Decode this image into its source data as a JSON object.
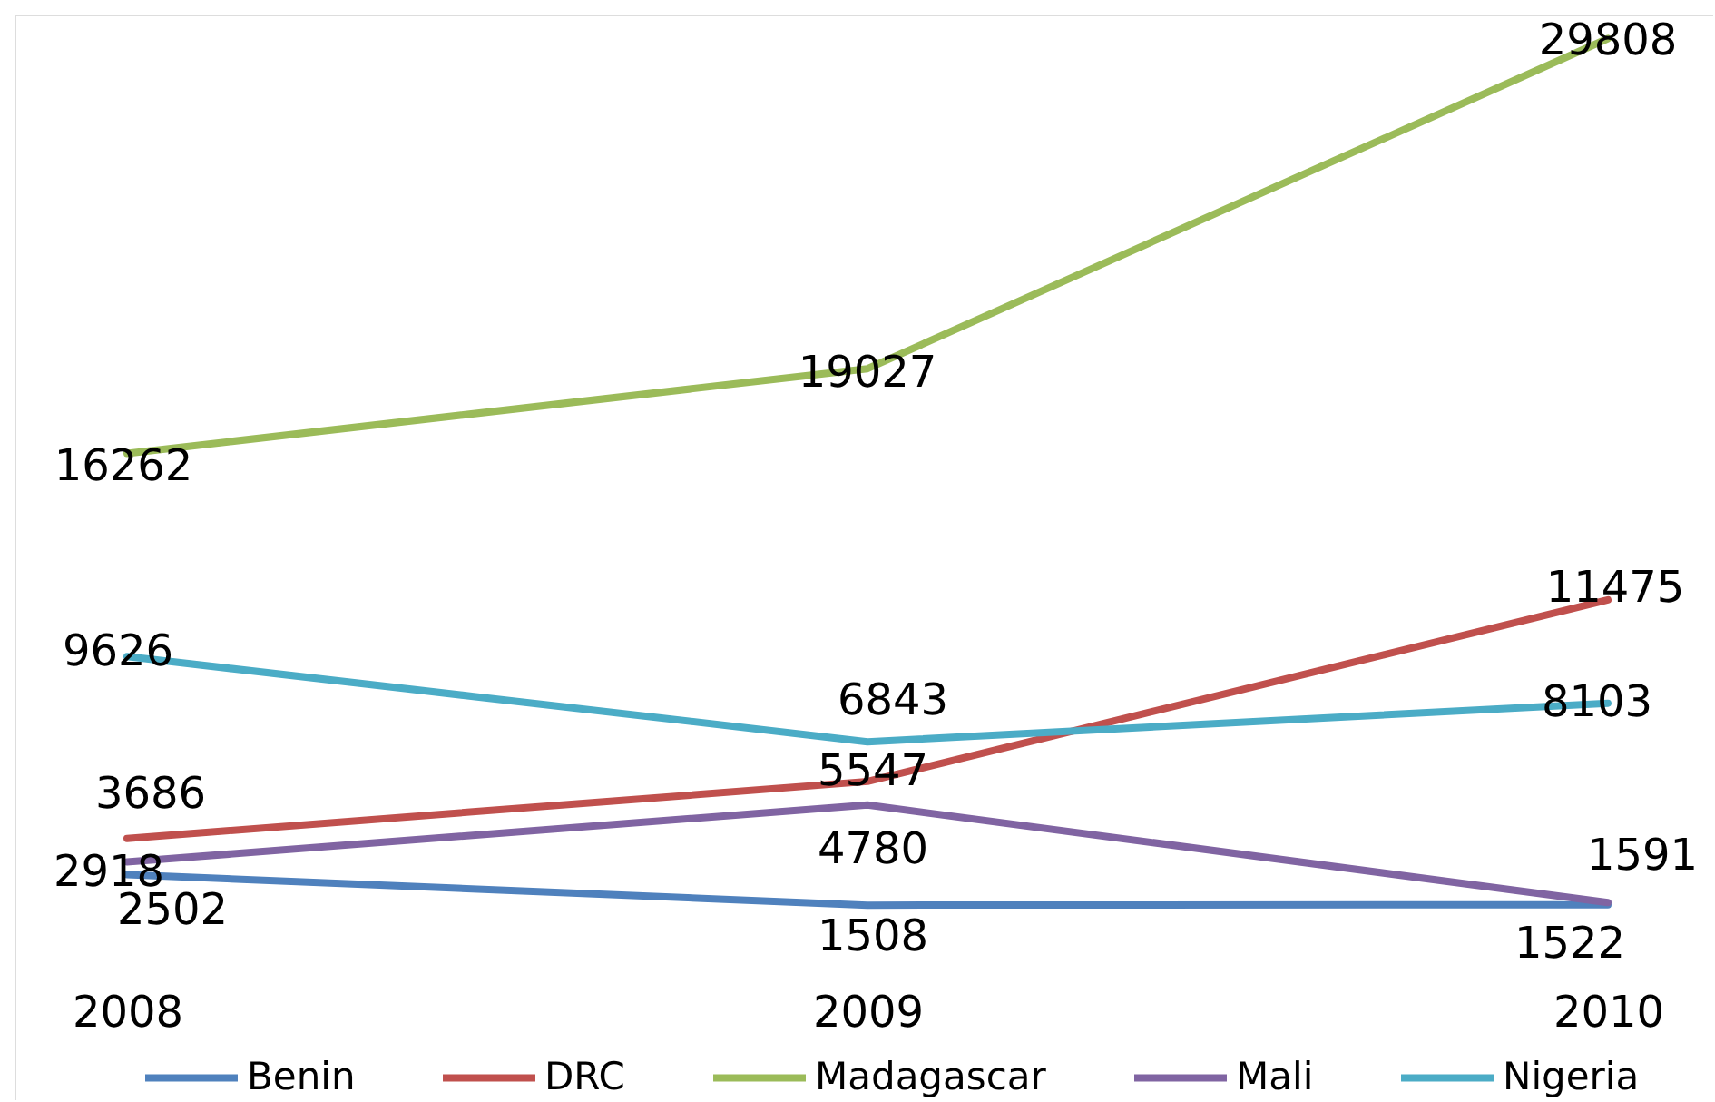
{
  "chart_data": {
    "type": "line",
    "categories": [
      "2008",
      "2009",
      "2010"
    ],
    "series": [
      {
        "name": "Benin",
        "color": "#4f81bd",
        "values": [
          2502,
          1508,
          1522
        ]
      },
      {
        "name": "DRC",
        "color": "#c0504d",
        "values": [
          3686,
          5547,
          11475
        ]
      },
      {
        "name": "Madagascar",
        "color": "#9bbb59",
        "values": [
          16262,
          19027,
          29808
        ]
      },
      {
        "name": "Mali",
        "color": "#8064a2",
        "values": [
          2918,
          4780,
          1591
        ]
      },
      {
        "name": "Nigeria",
        "color": "#4bacc6",
        "values": [
          9626,
          6843,
          8103
        ]
      }
    ],
    "data_labels": true,
    "legend": "bottom",
    "line_style": "solid",
    "tick_labels": "x"
  }
}
